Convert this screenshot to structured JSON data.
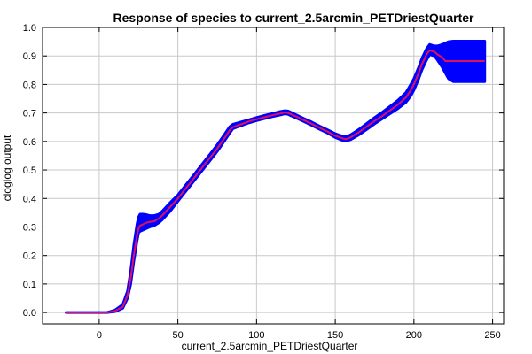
{
  "chart_data": {
    "type": "line",
    "title": "Response of species to current_2.5arcmin_PETDriestQuarter",
    "xlabel": "current_2.5arcmin_PETDriestQuarter",
    "ylabel": "cloglog output",
    "xlim": [
      -36,
      257
    ],
    "ylim": [
      -0.04,
      1.0
    ],
    "x_ticks": [
      0,
      50,
      100,
      150,
      200,
      250
    ],
    "y_ticks": [
      0.0,
      0.1,
      0.2,
      0.3,
      0.4,
      0.5,
      0.6,
      0.7,
      0.8,
      0.9,
      1.0
    ],
    "x_tick_labels": [
      "0",
      "50",
      "100",
      "150",
      "200",
      "250"
    ],
    "y_tick_labels": [
      "0.0",
      "0.1",
      "0.2",
      "0.3",
      "0.4",
      "0.5",
      "0.6",
      "0.7",
      "0.8",
      "0.9",
      "1.0"
    ],
    "grid": true,
    "mean_color": "#e0105a",
    "band_color": "#0000ff",
    "mean": {
      "x": [
        -21,
        0,
        5,
        10,
        15,
        18,
        20,
        22,
        24,
        25,
        26,
        28,
        30,
        32,
        35,
        38,
        40,
        45,
        50,
        55,
        60,
        65,
        70,
        75,
        80,
        83,
        85,
        90,
        95,
        100,
        105,
        110,
        115,
        118,
        120,
        122,
        125,
        130,
        135,
        140,
        145,
        150,
        155,
        157,
        160,
        165,
        170,
        175,
        180,
        185,
        190,
        195,
        198,
        200,
        203,
        205,
        208,
        210,
        213,
        215,
        218,
        220,
        225,
        230,
        235,
        240,
        245
      ],
      "y": [
        0.0,
        0.0,
        0.0,
        0.005,
        0.02,
        0.06,
        0.12,
        0.2,
        0.27,
        0.295,
        0.305,
        0.31,
        0.315,
        0.318,
        0.32,
        0.33,
        0.34,
        0.37,
        0.4,
        0.435,
        0.47,
        0.505,
        0.54,
        0.575,
        0.615,
        0.64,
        0.65,
        0.66,
        0.67,
        0.678,
        0.685,
        0.692,
        0.698,
        0.702,
        0.7,
        0.695,
        0.688,
        0.675,
        0.662,
        0.648,
        0.635,
        0.62,
        0.61,
        0.608,
        0.615,
        0.632,
        0.652,
        0.672,
        0.69,
        0.71,
        0.73,
        0.755,
        0.78,
        0.8,
        0.84,
        0.87,
        0.905,
        0.92,
        0.915,
        0.905,
        0.895,
        0.882,
        0.882,
        0.882,
        0.882,
        0.882,
        0.882
      ]
    },
    "band": {
      "x": [
        -21,
        0,
        5,
        10,
        15,
        18,
        20,
        22,
        24,
        25,
        26,
        28,
        30,
        32,
        35,
        38,
        40,
        45,
        50,
        55,
        60,
        65,
        70,
        75,
        80,
        83,
        85,
        90,
        95,
        100,
        105,
        110,
        115,
        118,
        120,
        122,
        125,
        130,
        135,
        140,
        145,
        150,
        155,
        157,
        160,
        165,
        170,
        175,
        180,
        185,
        190,
        195,
        198,
        200,
        203,
        205,
        208,
        210,
        213,
        215,
        218,
        220,
        222,
        225,
        230,
        235,
        240,
        245
      ],
      "lower": [
        0.0,
        0.0,
        0.0,
        0.003,
        0.015,
        0.05,
        0.1,
        0.18,
        0.25,
        0.28,
        0.285,
        0.29,
        0.295,
        0.3,
        0.305,
        0.315,
        0.325,
        0.355,
        0.39,
        0.425,
        0.46,
        0.495,
        0.53,
        0.565,
        0.605,
        0.63,
        0.645,
        0.655,
        0.665,
        0.673,
        0.68,
        0.687,
        0.693,
        0.697,
        0.695,
        0.69,
        0.683,
        0.67,
        0.657,
        0.643,
        0.63,
        0.614,
        0.603,
        0.601,
        0.607,
        0.623,
        0.642,
        0.662,
        0.68,
        0.698,
        0.716,
        0.738,
        0.76,
        0.78,
        0.82,
        0.85,
        0.885,
        0.905,
        0.9,
        0.885,
        0.86,
        0.84,
        0.82,
        0.81,
        0.81,
        0.81,
        0.81,
        0.81
      ],
      "upper": [
        0.0,
        0.0,
        0.0,
        0.008,
        0.028,
        0.075,
        0.145,
        0.235,
        0.31,
        0.335,
        0.345,
        0.345,
        0.343,
        0.34,
        0.34,
        0.345,
        0.355,
        0.385,
        0.412,
        0.447,
        0.482,
        0.517,
        0.552,
        0.588,
        0.628,
        0.652,
        0.66,
        0.668,
        0.676,
        0.684,
        0.691,
        0.698,
        0.705,
        0.708,
        0.707,
        0.702,
        0.694,
        0.681,
        0.668,
        0.654,
        0.641,
        0.627,
        0.618,
        0.616,
        0.624,
        0.642,
        0.663,
        0.684,
        0.703,
        0.724,
        0.745,
        0.772,
        0.8,
        0.82,
        0.86,
        0.89,
        0.925,
        0.94,
        0.935,
        0.935,
        0.94,
        0.945,
        0.95,
        0.952,
        0.952,
        0.952,
        0.952,
        0.952
      ]
    }
  }
}
